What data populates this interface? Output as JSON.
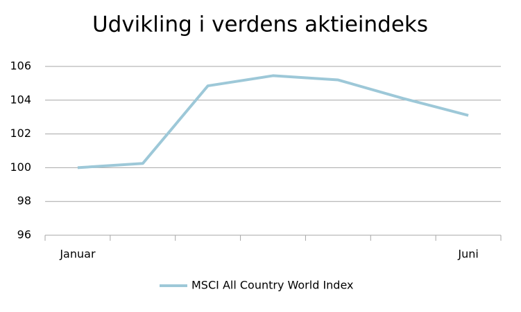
{
  "chart_data": {
    "type": "line",
    "title": "Udvikling i verdens aktieindeks",
    "categories": [
      "Januar",
      null,
      null,
      null,
      null,
      null,
      "Juni"
    ],
    "series": [
      {
        "name": "MSCI All Country World Index",
        "color": "#9dc8d8",
        "values": [
          100,
          100.25,
          104.85,
          105.45,
          105.2,
          104.1,
          103.1
        ]
      }
    ],
    "ylim": [
      96,
      106
    ],
    "yticks": [
      96,
      98,
      100,
      102,
      104,
      106
    ],
    "grid": true,
    "legend": "bottom"
  }
}
